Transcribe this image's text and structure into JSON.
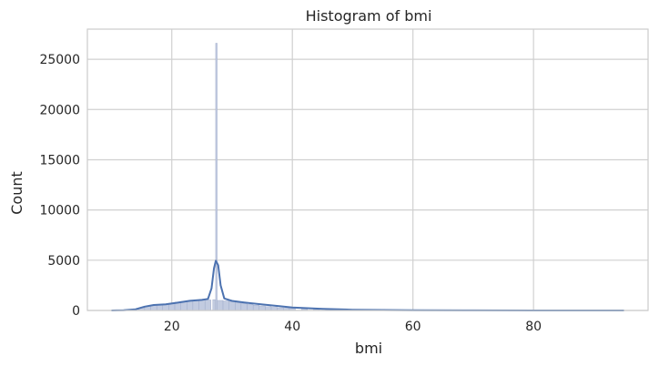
{
  "chart_data": {
    "type": "bar",
    "subtype": "histogram",
    "title": "Histogram of bmi",
    "xlabel": "bmi",
    "ylabel": "Count",
    "xlim": [
      6,
      99
    ],
    "ylim": [
      0,
      28000
    ],
    "xticks": [
      20,
      40,
      60,
      80
    ],
    "yticks": [
      0,
      5000,
      10000,
      15000,
      20000,
      25000
    ],
    "grid": true,
    "kde": true,
    "colors": {
      "bar_fill": "#c2cbe0",
      "bar_edge": "#9aa7c8",
      "kde_line": "#4c72b0",
      "grid": "#d0d0d0",
      "spine": "#cccccc"
    },
    "bins": [
      {
        "x": 10.0,
        "count": 2
      },
      {
        "x": 11.0,
        "count": 5
      },
      {
        "x": 12.0,
        "count": 15
      },
      {
        "x": 13.0,
        "count": 45
      },
      {
        "x": 14.0,
        "count": 120
      },
      {
        "x": 15.0,
        "count": 260
      },
      {
        "x": 16.0,
        "count": 420
      },
      {
        "x": 17.0,
        "count": 520
      },
      {
        "x": 18.0,
        "count": 580
      },
      {
        "x": 19.0,
        "count": 640
      },
      {
        "x": 20.0,
        "count": 720
      },
      {
        "x": 21.0,
        "count": 820
      },
      {
        "x": 22.0,
        "count": 900
      },
      {
        "x": 23.0,
        "count": 960
      },
      {
        "x": 24.0,
        "count": 1000
      },
      {
        "x": 25.0,
        "count": 1020
      },
      {
        "x": 26.0,
        "count": 1050
      },
      {
        "x": 27.0,
        "count": 1080
      },
      {
        "x": 27.4,
        "count": 26600
      },
      {
        "x": 28.0,
        "count": 1000
      },
      {
        "x": 29.0,
        "count": 950
      },
      {
        "x": 30.0,
        "count": 880
      },
      {
        "x": 31.0,
        "count": 780
      },
      {
        "x": 32.0,
        "count": 690
      },
      {
        "x": 33.0,
        "count": 600
      },
      {
        "x": 34.0,
        "count": 520
      },
      {
        "x": 35.0,
        "count": 450
      },
      {
        "x": 36.0,
        "count": 380
      },
      {
        "x": 37.0,
        "count": 320
      },
      {
        "x": 38.0,
        "count": 270
      },
      {
        "x": 39.0,
        "count": 230
      },
      {
        "x": 40.0,
        "count": 190
      },
      {
        "x": 42.0,
        "count": 140
      },
      {
        "x": 44.0,
        "count": 100
      },
      {
        "x": 46.0,
        "count": 70
      },
      {
        "x": 48.0,
        "count": 50
      },
      {
        "x": 50.0,
        "count": 35
      },
      {
        "x": 55.0,
        "count": 18
      },
      {
        "x": 60.0,
        "count": 9
      },
      {
        "x": 70.0,
        "count": 4
      },
      {
        "x": 80.0,
        "count": 2
      },
      {
        "x": 90.0,
        "count": 1
      },
      {
        "x": 95.0,
        "count": 1
      }
    ],
    "kde_points": [
      {
        "x": 10,
        "y": 0
      },
      {
        "x": 12,
        "y": 20
      },
      {
        "x": 14,
        "y": 120
      },
      {
        "x": 15.5,
        "y": 380
      },
      {
        "x": 17,
        "y": 540
      },
      {
        "x": 19,
        "y": 620
      },
      {
        "x": 21,
        "y": 780
      },
      {
        "x": 23,
        "y": 960
      },
      {
        "x": 25,
        "y": 1050
      },
      {
        "x": 26,
        "y": 1150
      },
      {
        "x": 26.6,
        "y": 2200
      },
      {
        "x": 27.0,
        "y": 4200
      },
      {
        "x": 27.3,
        "y": 4950
      },
      {
        "x": 27.7,
        "y": 4500
      },
      {
        "x": 28.1,
        "y": 2500
      },
      {
        "x": 28.7,
        "y": 1200
      },
      {
        "x": 30,
        "y": 950
      },
      {
        "x": 32,
        "y": 800
      },
      {
        "x": 35,
        "y": 600
      },
      {
        "x": 38,
        "y": 420
      },
      {
        "x": 40,
        "y": 300
      },
      {
        "x": 45,
        "y": 150
      },
      {
        "x": 50,
        "y": 70
      },
      {
        "x": 60,
        "y": 20
      },
      {
        "x": 70,
        "y": 8
      },
      {
        "x": 80,
        "y": 4
      },
      {
        "x": 95,
        "y": 1
      }
    ]
  }
}
